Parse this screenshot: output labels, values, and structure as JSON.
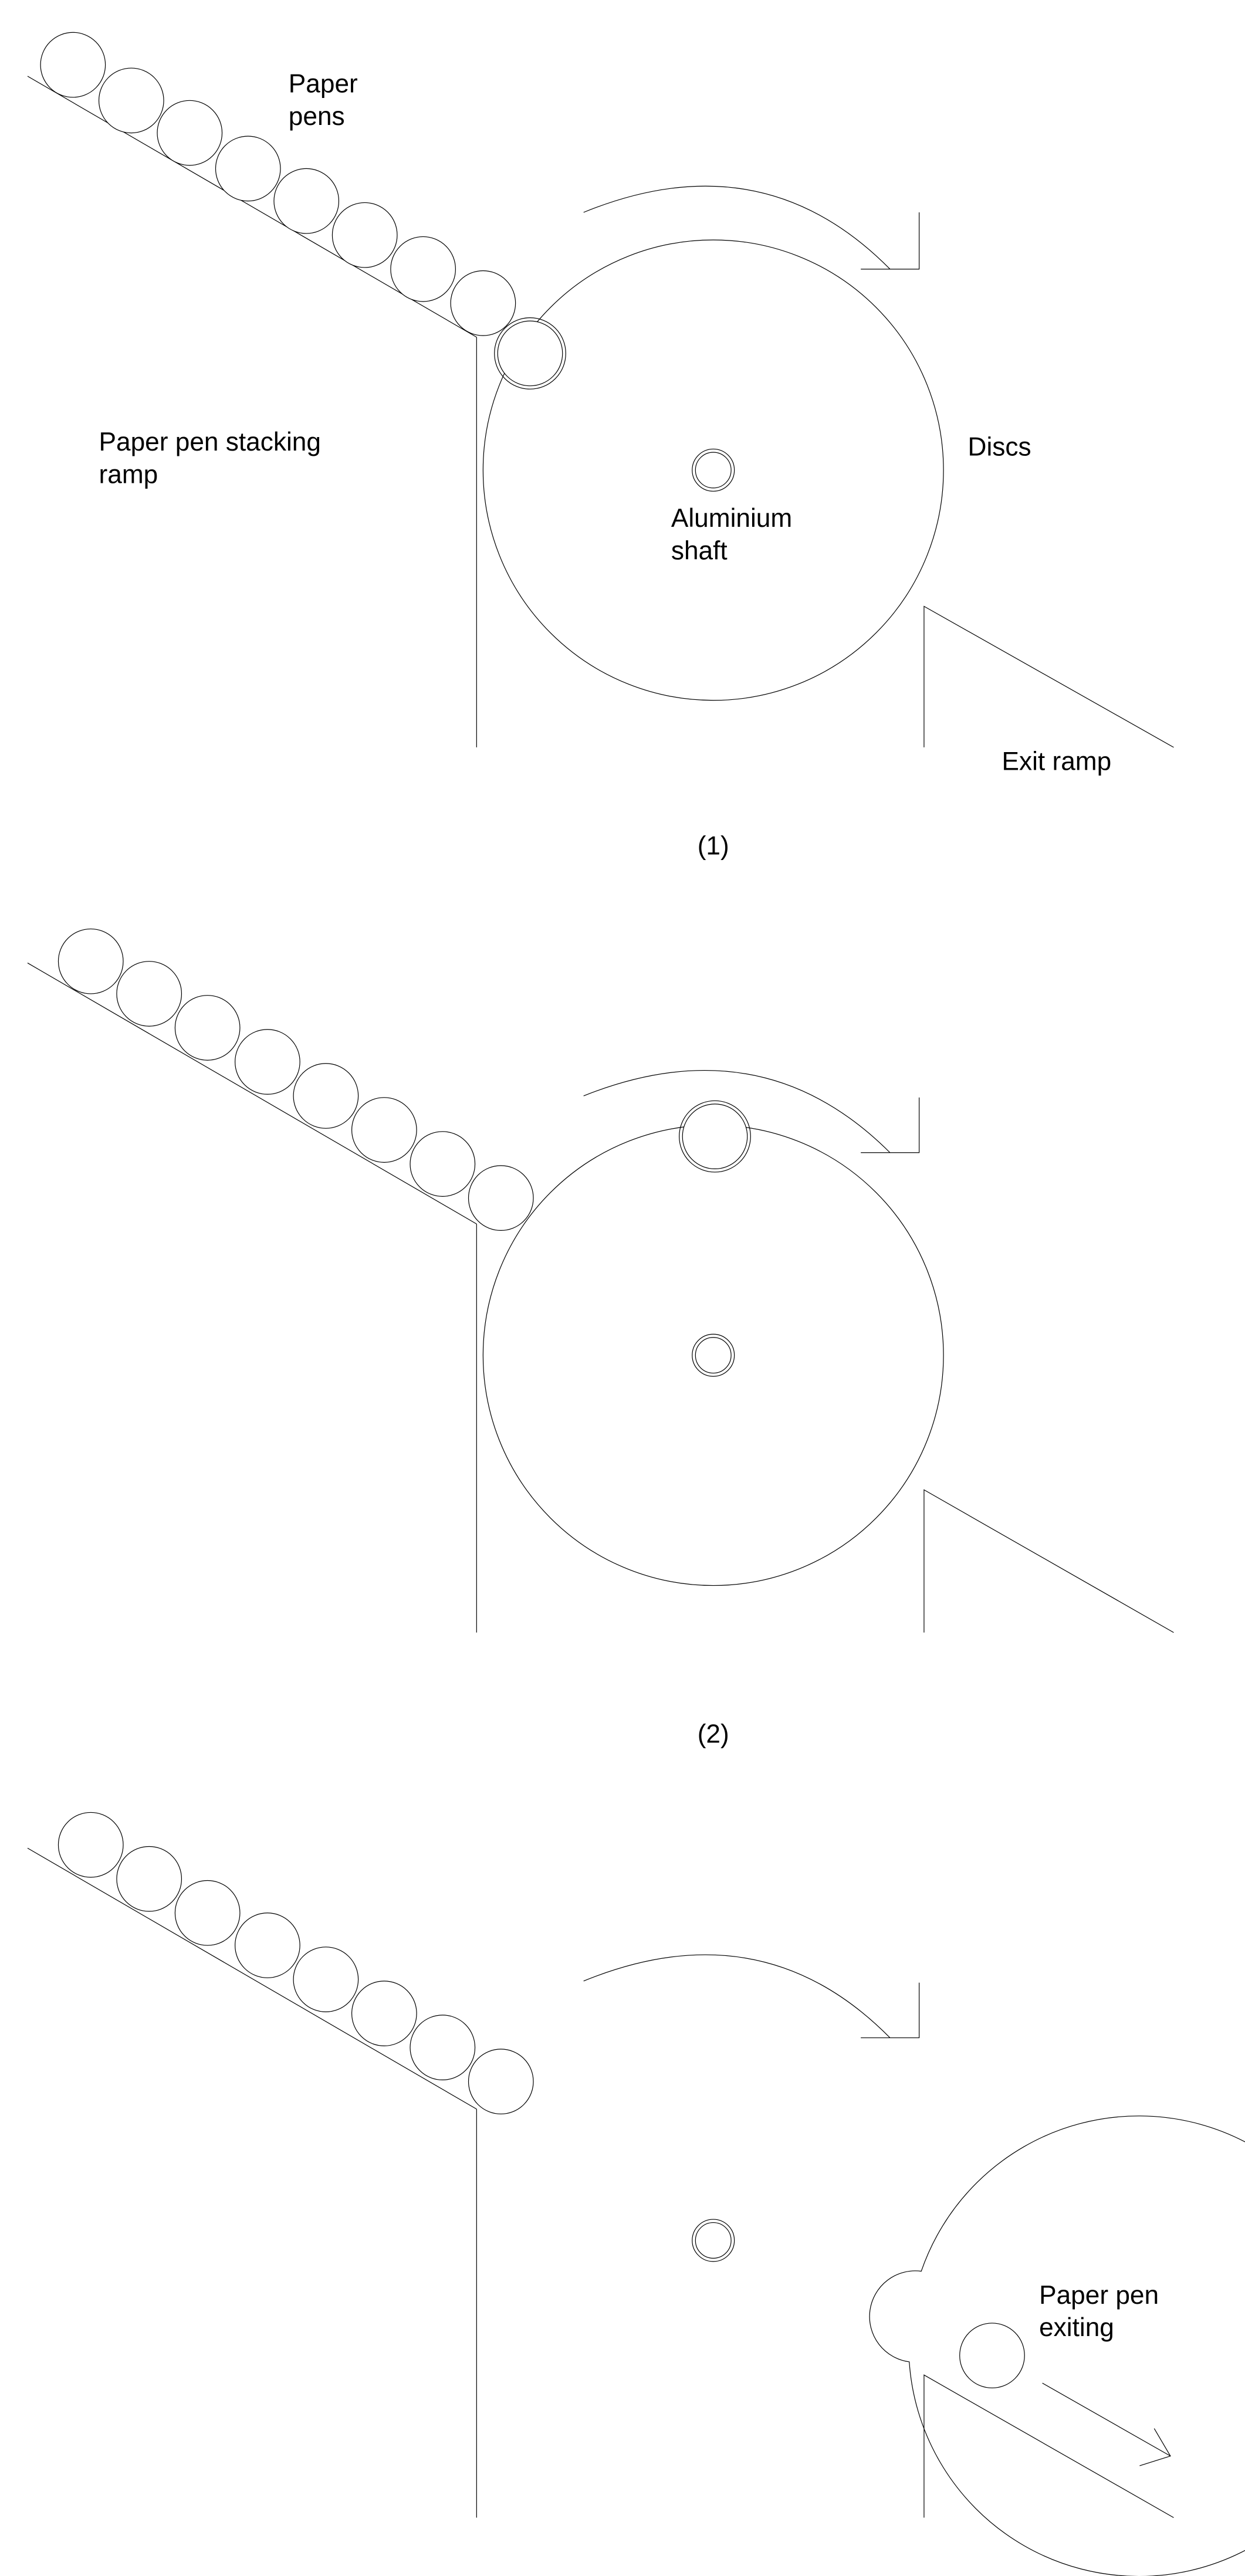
{
  "colors": {
    "background": "#ffffff",
    "line": "#000000"
  },
  "labels": {
    "paper_pens": [
      "Paper",
      "pens"
    ],
    "stacking_ramp": [
      "Paper pen stacking",
      "ramp"
    ],
    "discs": "Discs",
    "shaft": [
      "Aluminium",
      "shaft"
    ],
    "exit_ramp": "Exit ramp",
    "pen_exiting": [
      "Paper pen",
      "exiting"
    ]
  },
  "panels": [
    {
      "caption": "(1)"
    },
    {
      "caption": "(2)"
    }
  ]
}
